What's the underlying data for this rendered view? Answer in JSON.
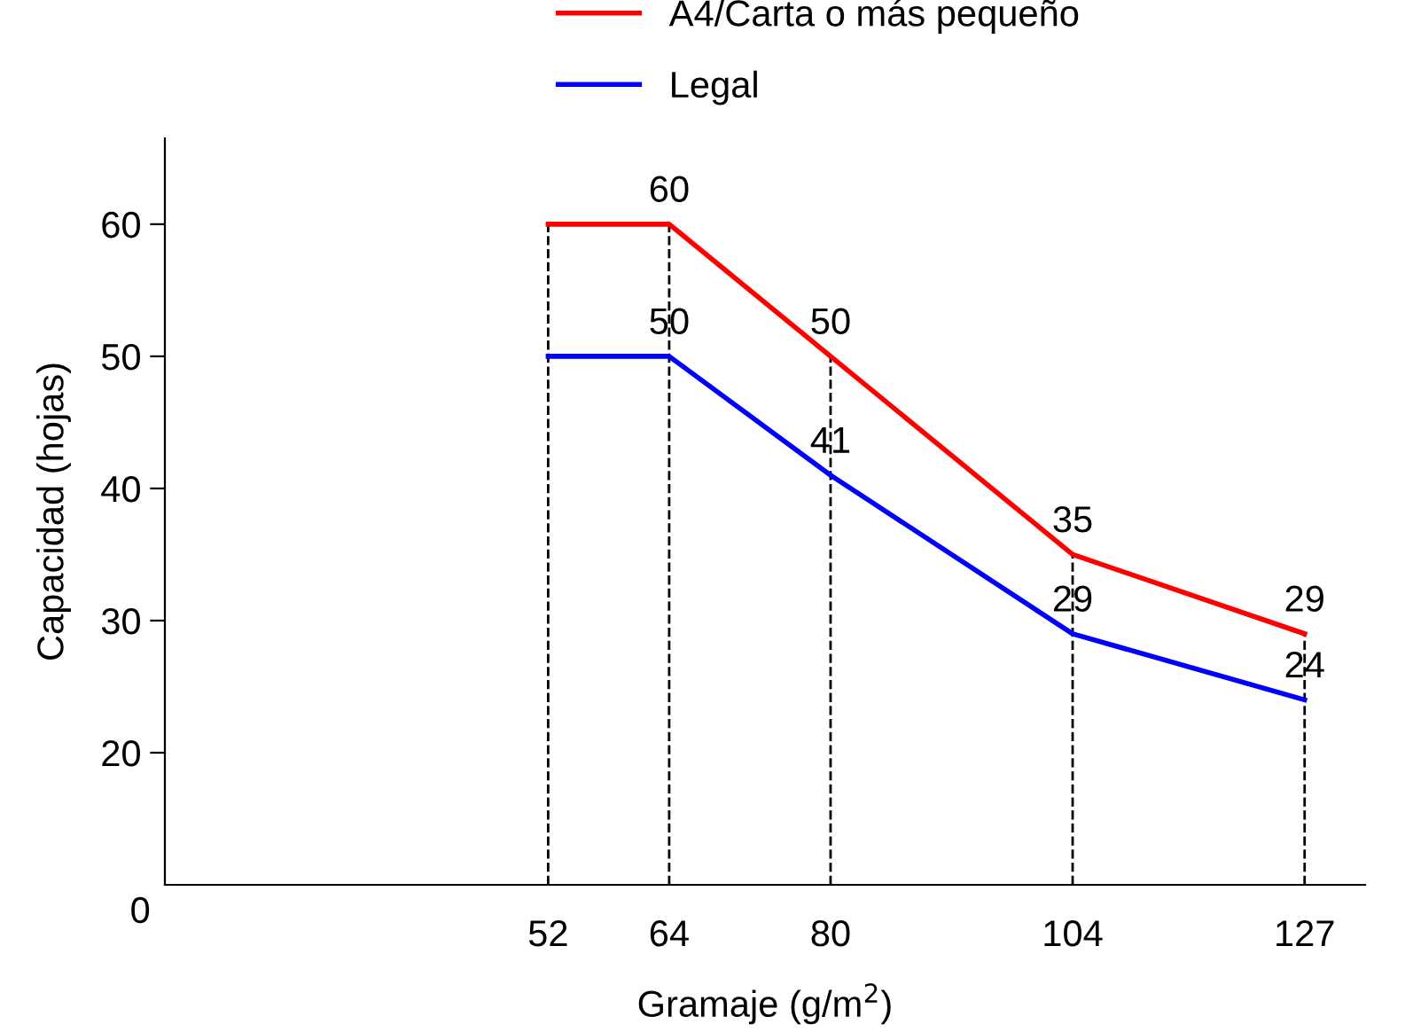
{
  "chart_data": {
    "type": "line",
    "xlabel": "Gramaje (g/m$^{2}$)",
    "ylabel": "Capacidad (hojas)",
    "x": [
      52,
      64,
      80,
      104,
      127
    ],
    "series": [
      {
        "name": "A4/Carta o más pequeño",
        "color": "#ff0000",
        "values": [
          60,
          60,
          50,
          35,
          29
        ],
        "value_labels": [
          null,
          "60",
          "50",
          "35",
          "29"
        ]
      },
      {
        "name": "Legal",
        "color": "#0000ff",
        "values": [
          50,
          50,
          41,
          29,
          24
        ],
        "value_labels": [
          null,
          "50",
          "41",
          "29",
          "24"
        ]
      }
    ],
    "xlim": [
      14,
      133
    ],
    "xticks": [
      52,
      64,
      80,
      104,
      127
    ],
    "ylim": [
      10,
      66.5
    ],
    "yticks": [
      20,
      30,
      40,
      50,
      60
    ],
    "ref_lines": [
      {
        "axis": "x",
        "value": 52,
        "line_style": "dashed",
        "color": "#000000"
      },
      {
        "axis": "x",
        "value": 64,
        "line_style": "dashed",
        "color": "#000000"
      },
      {
        "axis": "x",
        "value": 80,
        "line_style": "dashed",
        "color": "#000000"
      },
      {
        "axis": "x",
        "value": 104,
        "line_style": "dashed",
        "color": "#000000"
      },
      {
        "axis": "x",
        "value": 127,
        "line_style": "dashed",
        "color": "#000000"
      }
    ],
    "annotations": [
      "0"
    ],
    "legend": "top",
    "grid": false,
    "marker": "none",
    "line_style": "solid"
  }
}
